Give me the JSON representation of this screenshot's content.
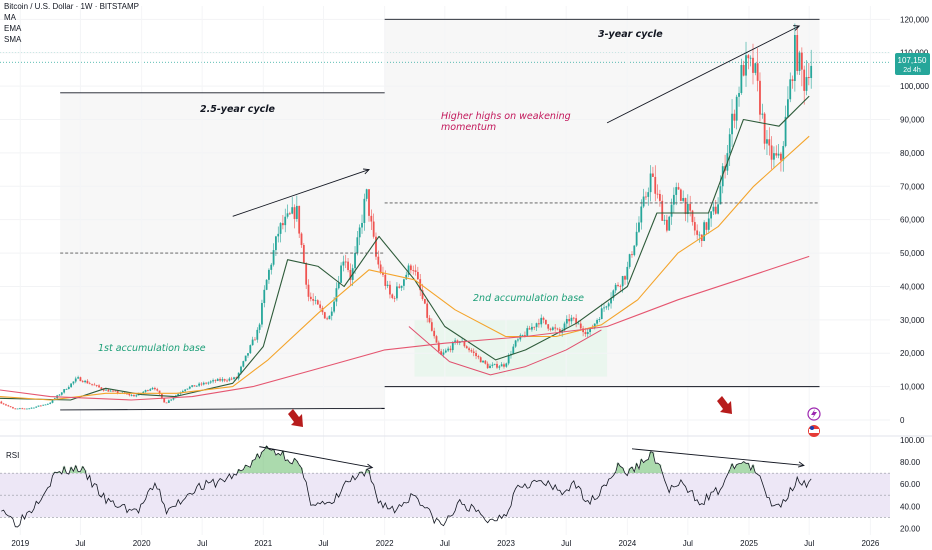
{
  "header": {
    "title": "Bitcoin / U.S. Dollar · 1W · BITSTAMP",
    "indicators": [
      "MA",
      "EMA",
      "SMA"
    ]
  },
  "price_badge": {
    "price": "107,150",
    "countdown": "2d 4h",
    "color": "#26a69a"
  },
  "rsi_label": "RSI",
  "colors": {
    "up": "#26a69a",
    "down": "#ef5350",
    "ma_fast": "#2e5b3a",
    "ma_mid": "#f4a42b",
    "ma_slow": "#e55670",
    "rsi": "#131722",
    "rsi_band": "#ede7f6",
    "arrow": "#b71c1c",
    "annotation_red": "#c2185b",
    "annotation_green": "#1b9e77"
  },
  "annotations": {
    "cycle1": "2.5-year cycle",
    "cycle2": "3-year cycle",
    "higher_highs_1": "Higher highs on weakening",
    "higher_highs_2": "momentum",
    "accum1": "1st accumulation base",
    "accum2": "2nd accumulation base"
  },
  "chart_data": [
    {
      "type": "candlestick",
      "title": "Bitcoin / U.S. Dollar · 1W · BITSTAMP",
      "xlabel": "",
      "ylabel": "",
      "x_ticks": [
        "2019",
        "Jul",
        "2020",
        "Jul",
        "2021",
        "Jul",
        "2022",
        "Jul",
        "2023",
        "Jul",
        "2024",
        "Jul",
        "2025",
        "Jul",
        "2026"
      ],
      "y_ticks": [
        0,
        10000,
        20000,
        30000,
        40000,
        50000,
        60000,
        70000,
        80000,
        90000,
        100000,
        110000,
        120000
      ],
      "y_tick_labels": [
        "0",
        "10,000",
        "20,000",
        "30,000",
        "40,000",
        "50,000",
        "60,000",
        "70,000",
        "80,000",
        "90,000",
        "100,000",
        "110,000",
        "120,000"
      ],
      "ylim": [
        0,
        124000
      ],
      "xlim": [
        "2018-11-01",
        "2026-03-01"
      ],
      "last_price": 107150,
      "price_path": [
        [
          "2018-11-01",
          5500
        ],
        [
          "2018-12-15",
          3300
        ],
        [
          "2019-02-01",
          3500
        ],
        [
          "2019-04-01",
          5000
        ],
        [
          "2019-06-25",
          12500
        ],
        [
          "2019-09-15",
          9000
        ],
        [
          "2019-12-15",
          7200
        ],
        [
          "2020-02-10",
          10000
        ],
        [
          "2020-03-15",
          5000
        ],
        [
          "2020-05-15",
          9500
        ],
        [
          "2020-08-15",
          11800
        ],
        [
          "2020-10-15",
          12500
        ],
        [
          "2020-12-20",
          27000
        ],
        [
          "2021-01-10",
          40000
        ],
        [
          "2021-02-20",
          57000
        ],
        [
          "2021-04-14",
          63000
        ],
        [
          "2021-05-20",
          37000
        ],
        [
          "2021-07-20",
          30000
        ],
        [
          "2021-09-05",
          50000
        ],
        [
          "2021-09-25",
          42000
        ],
        [
          "2021-11-10",
          68000
        ],
        [
          "2021-12-10",
          48000
        ],
        [
          "2022-01-25",
          36000
        ],
        [
          "2022-03-28",
          47000
        ],
        [
          "2022-05-15",
          30000
        ],
        [
          "2022-06-20",
          19000
        ],
        [
          "2022-08-15",
          24000
        ],
        [
          "2022-11-10",
          16000
        ],
        [
          "2022-12-31",
          16500
        ],
        [
          "2023-02-01",
          23000
        ],
        [
          "2023-04-15",
          30000
        ],
        [
          "2023-06-15",
          26000
        ],
        [
          "2023-07-15",
          30500
        ],
        [
          "2023-09-10",
          26000
        ],
        [
          "2023-12-01",
          40000
        ],
        [
          "2024-01-01",
          44000
        ],
        [
          "2024-03-14",
          73000
        ],
        [
          "2024-05-01",
          58000
        ],
        [
          "2024-06-05",
          70000
        ],
        [
          "2024-08-05",
          54000
        ],
        [
          "2024-09-30",
          64000
        ],
        [
          "2024-11-15",
          90000
        ],
        [
          "2024-12-17",
          106000
        ],
        [
          "2025-01-20",
          105000
        ],
        [
          "2025-03-01",
          80000
        ],
        [
          "2025-04-08",
          77000
        ],
        [
          "2025-05-22",
          111000
        ],
        [
          "2025-06-20",
          101000
        ],
        [
          "2025-07-05",
          107150
        ]
      ],
      "series": [
        {
          "name": "MA",
          "points": [
            [
              "2018-11-01",
              6500
            ],
            [
              "2019-06-01",
              6000
            ],
            [
              "2019-09-15",
              9500
            ],
            [
              "2020-01-01",
              7600
            ],
            [
              "2020-04-10",
              7000
            ],
            [
              "2020-10-01",
              11000
            ],
            [
              "2021-01-01",
              22000
            ],
            [
              "2021-03-15",
              48000
            ],
            [
              "2021-06-15",
              46000
            ],
            [
              "2021-09-01",
              40000
            ],
            [
              "2021-12-15",
              55000
            ],
            [
              "2022-04-01",
              42000
            ],
            [
              "2022-07-01",
              28000
            ],
            [
              "2022-12-01",
              18000
            ],
            [
              "2023-03-01",
              21000
            ],
            [
              "2023-08-01",
              29000
            ],
            [
              "2024-01-01",
              40000
            ],
            [
              "2024-03-30",
              62000
            ],
            [
              "2024-09-01",
              62000
            ],
            [
              "2024-12-15",
              90000
            ],
            [
              "2025-04-01",
              88000
            ],
            [
              "2025-07-01",
              97000
            ]
          ]
        },
        {
          "name": "EMA",
          "points": [
            [
              "2018-11-01",
              7000
            ],
            [
              "2019-04-01",
              6000
            ],
            [
              "2019-09-15",
              8000
            ],
            [
              "2020-04-15",
              8000
            ],
            [
              "2020-10-01",
              10000
            ],
            [
              "2021-01-15",
              18000
            ],
            [
              "2021-06-15",
              32000
            ],
            [
              "2021-11-15",
              45000
            ],
            [
              "2022-04-01",
              42000
            ],
            [
              "2022-08-01",
              33000
            ],
            [
              "2022-12-31",
              25000
            ],
            [
              "2023-06-01",
              25000
            ],
            [
              "2023-10-15",
              28500
            ],
            [
              "2024-02-01",
              36000
            ],
            [
              "2024-06-01",
              50000
            ],
            [
              "2024-10-01",
              58000
            ],
            [
              "2025-01-15",
              70000
            ],
            [
              "2025-07-01",
              85000
            ]
          ]
        },
        {
          "name": "SMA",
          "points": [
            [
              "2018-11-01",
              9000
            ],
            [
              "2019-04-01",
              7000
            ],
            [
              "2019-12-01",
              6000
            ],
            [
              "2020-06-01",
              7000
            ],
            [
              "2020-12-01",
              10000
            ],
            [
              "2021-06-01",
              15000
            ],
            [
              "2022-01-01",
              21000
            ],
            [
              "2022-07-01",
              23000
            ],
            [
              "2023-03-01",
              25000
            ],
            [
              "2023-11-01",
              28000
            ],
            [
              "2024-06-01",
              36000
            ],
            [
              "2024-12-01",
              42000
            ],
            [
              "2025-07-01",
              49000
            ]
          ]
        },
        {
          "name": "curve",
          "points": [
            [
              "2022-03-15",
              28000
            ],
            [
              "2022-07-15",
              17500
            ],
            [
              "2022-11-15",
              13500
            ],
            [
              "2023-03-01",
              16000
            ],
            [
              "2023-07-01",
              21000
            ],
            [
              "2023-10-15",
              27000
            ]
          ]
        }
      ],
      "levels": [
        {
          "label": "",
          "value": 50000,
          "from": "2019-05-01",
          "to": "2022-01-01",
          "style": "dashed"
        },
        {
          "label": "",
          "value": 65000,
          "from": "2022-01-01",
          "to": "2025-08-01",
          "style": "dashed"
        }
      ]
    },
    {
      "type": "line",
      "title": "RSI",
      "ylim": [
        14,
        100
      ],
      "y_ticks": [
        20,
        40,
        60,
        80,
        100
      ],
      "y_tick_labels": [
        "20.00",
        "40.00",
        "60.00",
        "80.00",
        "100.00"
      ],
      "bands": [
        30,
        50,
        70
      ],
      "rsi_path": [
        [
          "2018-11-01",
          40
        ],
        [
          "2018-12-15",
          24
        ],
        [
          "2019-02-01",
          38
        ],
        [
          "2019-04-15",
          70
        ],
        [
          "2019-06-25",
          75
        ],
        [
          "2019-09-15",
          44
        ],
        [
          "2019-12-15",
          35
        ],
        [
          "2020-02-10",
          60
        ],
        [
          "2020-03-15",
          34
        ],
        [
          "2020-06-01",
          56
        ],
        [
          "2020-08-15",
          62
        ],
        [
          "2020-10-15",
          70
        ],
        [
          "2021-01-10",
          92
        ],
        [
          "2021-02-20",
          88
        ],
        [
          "2021-04-14",
          78
        ],
        [
          "2021-05-20",
          45
        ],
        [
          "2021-07-20",
          40
        ],
        [
          "2021-09-05",
          62
        ],
        [
          "2021-11-10",
          70
        ],
        [
          "2021-12-10",
          45
        ],
        [
          "2022-01-25",
          36
        ],
        [
          "2022-03-28",
          52
        ],
        [
          "2022-05-15",
          32
        ],
        [
          "2022-06-20",
          22
        ],
        [
          "2022-08-15",
          44
        ],
        [
          "2022-11-10",
          26
        ],
        [
          "2022-12-31",
          35
        ],
        [
          "2023-02-01",
          60
        ],
        [
          "2023-04-15",
          62
        ],
        [
          "2023-06-15",
          52
        ],
        [
          "2023-07-15",
          60
        ],
        [
          "2023-09-10",
          44
        ],
        [
          "2023-12-01",
          76
        ],
        [
          "2024-01-01",
          70
        ],
        [
          "2024-03-14",
          88
        ],
        [
          "2024-05-01",
          55
        ],
        [
          "2024-06-05",
          60
        ],
        [
          "2024-08-05",
          44
        ],
        [
          "2024-09-30",
          55
        ],
        [
          "2024-11-15",
          78
        ],
        [
          "2024-12-17",
          80
        ],
        [
          "2025-01-20",
          70
        ],
        [
          "2025-03-01",
          44
        ],
        [
          "2025-04-08",
          42
        ],
        [
          "2025-05-22",
          66
        ],
        [
          "2025-06-20",
          58
        ],
        [
          "2025-07-05",
          61
        ]
      ]
    }
  ]
}
